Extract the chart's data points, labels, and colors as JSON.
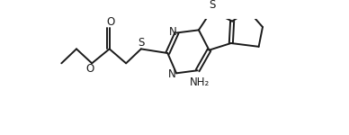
{
  "background_color": "#ffffff",
  "line_color": "#1a1a1a",
  "line_width": 1.4,
  "figsize": [
    3.88,
    1.5
  ],
  "dpi": 100,
  "xlim": [
    0,
    10.0
  ],
  "ylim": [
    -0.8,
    4.2
  ],
  "atoms": {
    "N3_x": 5.55,
    "N3_y": 3.55,
    "N1_x": 5.05,
    "N1_y": 1.9,
    "Sth_x": 7.35,
    "Sth_y": 3.8,
    "S1_x": 3.55,
    "S1_y": 2.9,
    "Oc_x": 1.8,
    "Oc_y": 3.55,
    "Oe_x": 1.05,
    "Oe_y": 2.3
  },
  "label_fontsize": 8.5,
  "nh2_fontsize": 8.5
}
